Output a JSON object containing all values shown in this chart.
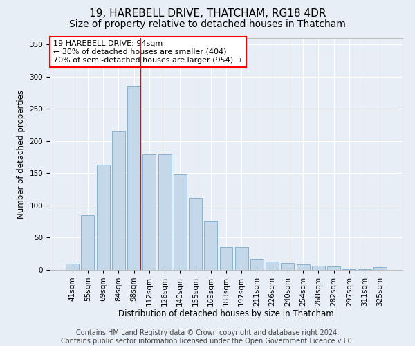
{
  "title": "19, HAREBELL DRIVE, THATCHAM, RG18 4DR",
  "subtitle": "Size of property relative to detached houses in Thatcham",
  "xlabel": "Distribution of detached houses by size in Thatcham",
  "ylabel": "Number of detached properties",
  "bar_color": "#c5d8ea",
  "bar_edge_color": "#7aaac8",
  "background_color": "#e8eef5",
  "plot_bg_color": "#e8eef5",
  "categories": [
    "41sqm",
    "55sqm",
    "69sqm",
    "84sqm",
    "98sqm",
    "112sqm",
    "126sqm",
    "140sqm",
    "155sqm",
    "169sqm",
    "183sqm",
    "197sqm",
    "211sqm",
    "226sqm",
    "240sqm",
    "254sqm",
    "268sqm",
    "282sqm",
    "297sqm",
    "311sqm",
    "325sqm"
  ],
  "values": [
    10,
    85,
    163,
    215,
    285,
    180,
    180,
    148,
    112,
    75,
    35,
    35,
    17,
    13,
    11,
    9,
    6,
    5,
    1,
    1,
    4
  ],
  "annotation_box_text": "19 HAREBELL DRIVE: 94sqm\n← 30% of detached houses are smaller (404)\n70% of semi-detached houses are larger (954) →",
  "red_line_index": 4,
  "ylim": [
    0,
    360
  ],
  "yticks": [
    0,
    50,
    100,
    150,
    200,
    250,
    300,
    350
  ],
  "title_fontsize": 11,
  "subtitle_fontsize": 10,
  "label_fontsize": 8.5,
  "tick_fontsize": 7.5,
  "annotation_fontsize": 8,
  "footer_fontsize": 7,
  "footer_line1": "Contains HM Land Registry data © Crown copyright and database right 2024.",
  "footer_line2": "Contains public sector information licensed under the Open Government Licence v3.0."
}
